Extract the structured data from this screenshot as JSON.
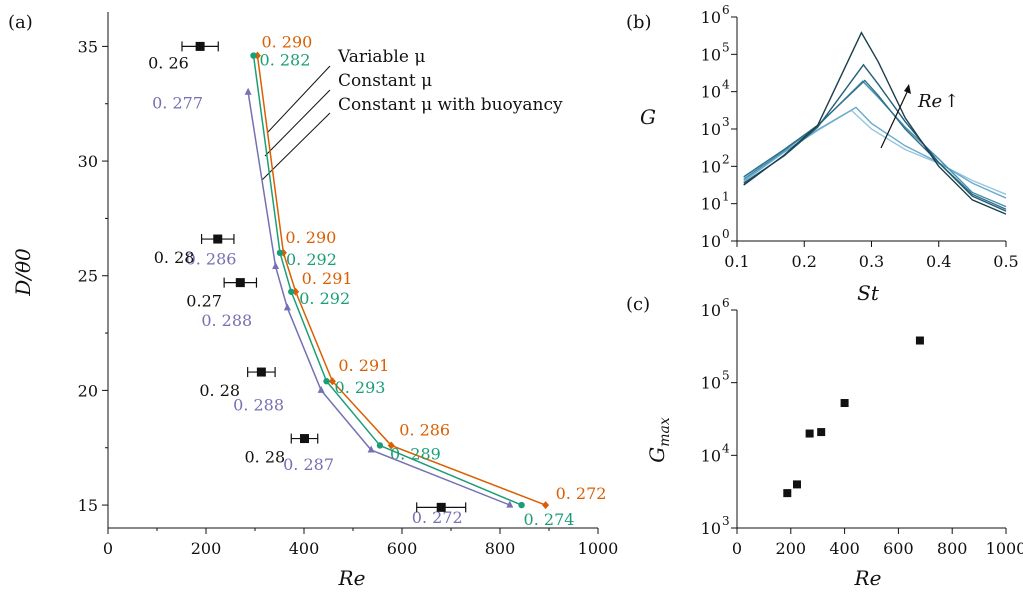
{
  "chart_data": [
    {
      "panel": "(a)",
      "type": "line",
      "xlabel": "Re",
      "ylabel": "D/θ0",
      "xlim": [
        0,
        1000
      ],
      "ylim": [
        14,
        36.5
      ],
      "xticks": [
        "0",
        "200",
        "400",
        "600",
        "800",
        "1000"
      ],
      "yticks": [
        "15",
        "20",
        "25",
        "30",
        "35"
      ],
      "legend_entries": [
        "Variable μ",
        "Constant μ",
        "Constant μ with buoyancy"
      ],
      "series": [
        {
          "name": "Variable μ",
          "color": "#d95f02",
          "marker": "diamond",
          "points": [
            {
              "x": 305,
              "y": 34.6,
              "label": "0. 290"
            },
            {
              "x": 358,
              "y": 26.0,
              "label": "0. 290"
            },
            {
              "x": 383,
              "y": 24.3,
              "label": "0. 291"
            },
            {
              "x": 458,
              "y": 20.4,
              "label": "0. 291"
            },
            {
              "x": 578,
              "y": 17.6,
              "label": "0. 286"
            },
            {
              "x": 893,
              "y": 15.0,
              "label": "0. 272"
            }
          ]
        },
        {
          "name": "Constant μ",
          "color": "#1b9e77",
          "marker": "circle",
          "points": [
            {
              "x": 297,
              "y": 34.6,
              "label": "0. 282"
            },
            {
              "x": 351,
              "y": 26.0,
              "label": "0. 292"
            },
            {
              "x": 374,
              "y": 24.3,
              "label": "0. 292"
            },
            {
              "x": 446,
              "y": 20.4,
              "label": "0. 293"
            },
            {
              "x": 555,
              "y": 17.6,
              "label": "0. 289"
            },
            {
              "x": 844,
              "y": 15.0,
              "label": "0. 274"
            }
          ]
        },
        {
          "name": "Constant μ with buoyancy",
          "color": "#7570b3",
          "marker": "triangle",
          "points": [
            {
              "x": 286,
              "y": 33.0,
              "label": "0. 277"
            },
            {
              "x": 342,
              "y": 25.4,
              "label": "0. 286"
            },
            {
              "x": 366,
              "y": 23.6,
              "label": "0. 288"
            },
            {
              "x": 435,
              "y": 20.0,
              "label": "0. 288"
            },
            {
              "x": 537,
              "y": 17.4,
              "label": "0. 287"
            },
            {
              "x": 820,
              "y": 15.0,
              "label": "0. 272"
            }
          ]
        }
      ],
      "experiments": [
        {
          "x": 188,
          "y": 35.0,
          "err": 37,
          "label": "0. 26"
        },
        {
          "x": 224,
          "y": 26.6,
          "err": 33,
          "label": "0. 28"
        },
        {
          "x": 270,
          "y": 24.7,
          "err": 33,
          "label": "0.27"
        },
        {
          "x": 313,
          "y": 20.8,
          "err": 28,
          "label": "0. 28"
        },
        {
          "x": 401,
          "y": 17.9,
          "err": 27,
          "label": "0. 28"
        },
        {
          "x": 680,
          "y": 14.9,
          "err": 50,
          "label": ""
        }
      ]
    },
    {
      "panel": "(b)",
      "type": "line",
      "xlabel": "St",
      "ylabel": "G",
      "yscale": "log",
      "xlim": [
        0.1,
        0.5
      ],
      "ylim_exp": [
        0,
        6
      ],
      "xticks": [
        "0.1",
        "0.2",
        "0.3",
        "0.4",
        "0.5"
      ],
      "yticks_exp": [
        "0",
        "1",
        "2",
        "3",
        "4",
        "5",
        "6"
      ],
      "annotation": "Re",
      "annotation_arrow": "↑",
      "series": [
        {
          "color": "#98c6dc",
          "st": [
            0.11,
            0.17,
            0.22,
            0.27,
            0.3,
            0.35,
            0.4,
            0.45,
            0.5
          ],
          "log10G": [
            1.7,
            2.38,
            2.96,
            3.5,
            3.0,
            2.45,
            2.08,
            1.62,
            1.25
          ]
        },
        {
          "color": "#6aaacb",
          "st": [
            0.11,
            0.17,
            0.22,
            0.277,
            0.3,
            0.35,
            0.4,
            0.45,
            0.5
          ],
          "log10G": [
            1.6,
            2.38,
            2.98,
            3.58,
            3.15,
            2.55,
            2.1,
            1.55,
            1.15
          ]
        },
        {
          "color": "#3f8fb0",
          "st": [
            0.11,
            0.17,
            0.22,
            0.287,
            0.31,
            0.35,
            0.4,
            0.45,
            0.5
          ],
          "log10G": [
            1.65,
            2.42,
            3.08,
            4.28,
            3.85,
            3.05,
            2.2,
            1.3,
            0.92
          ]
        },
        {
          "color": "#2f6f88",
          "st": [
            0.11,
            0.17,
            0.22,
            0.29,
            0.31,
            0.35,
            0.4,
            0.45,
            0.5
          ],
          "log10G": [
            1.72,
            2.45,
            3.1,
            4.3,
            3.9,
            3.0,
            2.1,
            1.25,
            0.85
          ]
        },
        {
          "color": "#245e74",
          "st": [
            0.11,
            0.17,
            0.22,
            0.288,
            0.31,
            0.35,
            0.4,
            0.45,
            0.5
          ],
          "log10G": [
            1.55,
            2.28,
            3.05,
            4.72,
            4.2,
            3.2,
            2.1,
            1.2,
            0.8
          ]
        },
        {
          "color": "#1b3f4c",
          "st": [
            0.11,
            0.17,
            0.22,
            0.285,
            0.31,
            0.35,
            0.4,
            0.45,
            0.5
          ],
          "log10G": [
            1.5,
            2.3,
            3.1,
            5.58,
            4.8,
            3.3,
            2.0,
            1.1,
            0.72
          ]
        }
      ]
    },
    {
      "panel": "(c)",
      "type": "scatter",
      "xlabel": "Re",
      "ylabel": "Gmax",
      "yscale": "log",
      "xlim": [
        0,
        1000
      ],
      "ylim_exp": [
        3,
        6
      ],
      "xticks": [
        "0",
        "200",
        "400",
        "600",
        "800",
        "1000"
      ],
      "yticks_exp": [
        "3",
        "4",
        "5",
        "6"
      ],
      "points": [
        {
          "x": 187,
          "log10y": 3.48
        },
        {
          "x": 223,
          "log10y": 3.6
        },
        {
          "x": 270,
          "log10y": 4.3
        },
        {
          "x": 313,
          "log10y": 4.32
        },
        {
          "x": 400,
          "log10y": 4.72
        },
        {
          "x": 680,
          "log10y": 5.58
        }
      ]
    }
  ]
}
